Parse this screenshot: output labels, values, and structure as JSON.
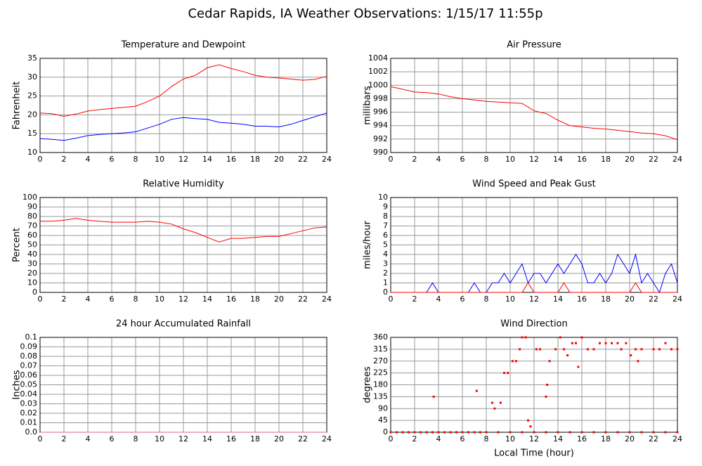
{
  "title": "Cedar Rapids, IA Weather Observations: 1/15/17 11:55p",
  "chart_data": [
    {
      "type": "line",
      "title": "Temperature and Dewpoint",
      "ylabel": "Fahrenheit",
      "grid": true,
      "xlim": [
        0,
        24
      ],
      "xticks": [
        0,
        2,
        4,
        6,
        8,
        10,
        12,
        14,
        16,
        18,
        20,
        22,
        24
      ],
      "ylim": [
        10,
        35
      ],
      "yticks": [
        10,
        15,
        20,
        25,
        30,
        35
      ],
      "x": [
        0,
        1,
        2,
        3,
        4,
        5,
        6,
        7,
        8,
        9,
        10,
        11,
        12,
        13,
        14,
        15,
        16,
        17,
        18,
        19,
        20,
        21,
        22,
        23,
        24
      ],
      "series": [
        {
          "color": "#ff0000",
          "values": [
            20.5,
            20.3,
            19.6,
            20.2,
            21.0,
            21.4,
            21.7,
            22.0,
            22.3,
            23.5,
            25.0,
            27.5,
            29.5,
            30.5,
            32.5,
            33.3,
            32.3,
            31.5,
            30.5,
            30.0,
            29.8,
            29.5,
            29.2,
            29.4,
            30.2
          ]
        },
        {
          "color": "#0000ff",
          "values": [
            13.7,
            13.5,
            13.2,
            13.8,
            14.5,
            14.8,
            15.0,
            15.2,
            15.5,
            16.5,
            17.5,
            18.8,
            19.3,
            19.0,
            18.8,
            18.0,
            17.8,
            17.5,
            17.0,
            17.0,
            16.8,
            17.5,
            18.5,
            19.5,
            20.5
          ]
        }
      ]
    },
    {
      "type": "line",
      "title": "Air Pressure",
      "ylabel": "millibars",
      "grid": true,
      "xlim": [
        0,
        24
      ],
      "xticks": [
        0,
        2,
        4,
        6,
        8,
        10,
        12,
        14,
        16,
        18,
        20,
        22,
        24
      ],
      "ylim": [
        990,
        1004
      ],
      "yticks": [
        990,
        992,
        994,
        996,
        998,
        1000,
        1002,
        1004
      ],
      "x": [
        0,
        1,
        2,
        3,
        4,
        5,
        6,
        7,
        8,
        9,
        10,
        11,
        12,
        13,
        14,
        15,
        16,
        17,
        18,
        19,
        20,
        21,
        22,
        23,
        24
      ],
      "series": [
        {
          "color": "#ff0000",
          "values": [
            999.8,
            999.4,
            999.0,
            998.9,
            998.7,
            998.3,
            998.0,
            997.8,
            997.6,
            997.5,
            997.4,
            997.3,
            996.2,
            995.8,
            994.8,
            994.0,
            993.8,
            993.6,
            993.5,
            993.3,
            993.1,
            992.9,
            992.8,
            992.5,
            991.9
          ]
        }
      ]
    },
    {
      "type": "line",
      "title": "Relative Humidity",
      "ylabel": "Percent",
      "grid": true,
      "xlim": [
        0,
        24
      ],
      "xticks": [
        0,
        2,
        4,
        6,
        8,
        10,
        12,
        14,
        16,
        18,
        20,
        22,
        24
      ],
      "ylim": [
        0,
        100
      ],
      "yticks": [
        0,
        10,
        20,
        30,
        40,
        50,
        60,
        70,
        80,
        90,
        100
      ],
      "x": [
        0,
        1,
        2,
        3,
        4,
        5,
        6,
        7,
        8,
        9,
        10,
        11,
        12,
        13,
        14,
        15,
        16,
        17,
        18,
        19,
        20,
        21,
        22,
        23,
        24
      ],
      "series": [
        {
          "color": "#ff0000",
          "values": [
            75,
            75,
            76,
            78,
            76,
            75,
            74,
            74,
            74,
            75,
            74,
            72,
            67,
            63,
            58,
            53,
            57,
            57,
            58,
            59,
            59,
            62,
            65,
            68,
            69
          ]
        }
      ]
    },
    {
      "type": "line",
      "title": "Wind Speed and Peak Gust",
      "ylabel": "miles/hour",
      "grid": true,
      "xlim": [
        0,
        24
      ],
      "xticks": [
        0,
        2,
        4,
        6,
        8,
        10,
        12,
        14,
        16,
        18,
        20,
        22,
        24
      ],
      "ylim": [
        0,
        10
      ],
      "yticks": [
        0,
        1,
        2,
        3,
        4,
        5,
        6,
        7,
        8,
        9,
        10
      ],
      "x": [
        0,
        0.5,
        1,
        1.5,
        2,
        2.5,
        3,
        3.5,
        4,
        4.5,
        5,
        5.5,
        6,
        6.5,
        7,
        7.5,
        8,
        8.5,
        9,
        9.5,
        10,
        10.5,
        11,
        11.5,
        12,
        12.5,
        13,
        13.5,
        14,
        14.5,
        15,
        15.5,
        16,
        16.5,
        17,
        17.5,
        18,
        18.5,
        19,
        19.5,
        20,
        20.5,
        21,
        21.5,
        22,
        22.5,
        23,
        23.5,
        24
      ],
      "series": [
        {
          "color": "#0000ff",
          "values": [
            0,
            0,
            0,
            0,
            0,
            0,
            0,
            1,
            0,
            0,
            0,
            0,
            0,
            0,
            1,
            0,
            0,
            1,
            1,
            2,
            1,
            2,
            3,
            1,
            2,
            2,
            1,
            2,
            3,
            2,
            3,
            4,
            3,
            1,
            1,
            2,
            1,
            2,
            4,
            3,
            2,
            4,
            1,
            2,
            1,
            0,
            2,
            3,
            1
          ]
        },
        {
          "color": "#ff0000",
          "values": [
            0,
            0,
            0,
            0,
            0,
            0,
            0,
            0,
            0,
            0,
            0,
            0,
            0,
            0,
            0,
            0,
            0,
            0,
            0,
            0,
            0,
            0,
            0,
            1,
            0,
            0,
            0,
            0,
            0,
            1,
            0,
            0,
            0,
            0,
            0,
            0,
            0,
            0,
            0,
            0,
            0,
            1,
            0,
            0,
            0,
            0,
            0,
            0,
            0
          ]
        }
      ]
    },
    {
      "type": "line",
      "title": "24 hour Accumulated Rainfall",
      "ylabel": "Inches",
      "grid": true,
      "xlim": [
        0,
        24
      ],
      "xticks": [
        0,
        2,
        4,
        6,
        8,
        10,
        12,
        14,
        16,
        18,
        20,
        22,
        24
      ],
      "ylim": [
        0,
        0.1
      ],
      "yticks": [
        {
          "value": 0,
          "label": "0.0"
        },
        0.01,
        0.02,
        0.03,
        0.04,
        0.05,
        0.06,
        0.07,
        0.08,
        0.09,
        0.1
      ],
      "x": [
        0,
        24
      ],
      "series": [
        {
          "color": "#e06080",
          "values": [
            0,
            0
          ]
        }
      ]
    },
    {
      "type": "scatter",
      "title": "Wind Direction",
      "ylabel": "degrees",
      "xlabel": "Local Time (hour)",
      "grid": true,
      "xlim": [
        0,
        24
      ],
      "xticks": [
        0,
        2,
        4,
        6,
        8,
        10,
        12,
        14,
        16,
        18,
        20,
        22,
        24
      ],
      "ylim": [
        0,
        360
      ],
      "yticks": [
        0,
        45,
        90,
        135,
        180,
        225,
        270,
        315,
        360
      ],
      "x": [
        0,
        0.5,
        1,
        1.5,
        2,
        2.5,
        3,
        3.5,
        4,
        4.5,
        5,
        5.5,
        6,
        6.5,
        7,
        7.5,
        8,
        9,
        10,
        11,
        12,
        13,
        14,
        15,
        16,
        17,
        18,
        19,
        20,
        21,
        22,
        23,
        24,
        3.6,
        7.2,
        8.5,
        8.7,
        9.2,
        9.5,
        9.8,
        10.2,
        10.5,
        10.8,
        11,
        11.3,
        11.5,
        11.7,
        12.2,
        12.5,
        13,
        13.1,
        13.3,
        13.8,
        14.2,
        14.5,
        14.8,
        15.2,
        15.5,
        15.7,
        16,
        16.5,
        17,
        17.5,
        18,
        18.5,
        19,
        19.3,
        19.7,
        20.1,
        20.5,
        20.7,
        21,
        22,
        22.5,
        23,
        23.5,
        24
      ],
      "color": "#ff0000",
      "values": [
        0,
        0,
        0,
        0,
        0,
        0,
        0,
        0,
        0,
        0,
        0,
        0,
        0,
        0,
        0,
        0,
        0,
        0,
        0,
        0,
        0,
        0,
        0,
        0,
        0,
        0,
        0,
        0,
        0,
        0,
        0,
        0,
        0,
        135,
        157,
        112,
        90,
        112,
        225,
        225,
        270,
        270,
        315,
        360,
        360,
        45,
        22,
        315,
        315,
        135,
        180,
        270,
        315,
        360,
        315,
        292,
        338,
        338,
        248,
        360,
        315,
        315,
        338,
        338,
        338,
        338,
        315,
        338,
        292,
        315,
        270,
        315,
        315,
        315,
        338,
        315,
        315
      ]
    }
  ]
}
